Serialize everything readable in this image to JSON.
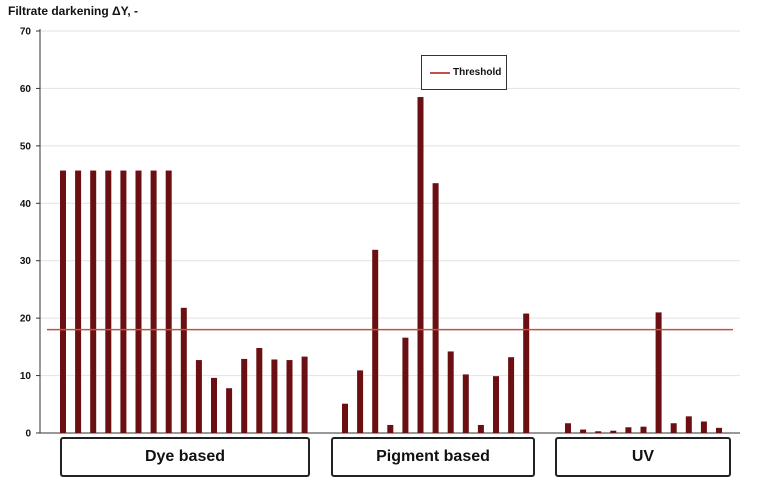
{
  "chart_data": {
    "type": "bar",
    "title": "",
    "ylabel": "Filtrate darkening ΔY, -",
    "ylim": [
      0,
      70
    ],
    "yticks": [
      "0",
      "10",
      "20",
      "30",
      "40",
      "50",
      "60",
      "70"
    ],
    "grid": true,
    "threshold": {
      "name": "Threshold",
      "value": 18,
      "color": "#c0504d"
    },
    "bar_color": "#6b0f12",
    "legend_position": "top-center",
    "groups": [
      {
        "name": "Dye based",
        "values": [
          45.7,
          45.7,
          45.7,
          45.7,
          45.7,
          45.7,
          45.7,
          45.7,
          21.8,
          12.7,
          9.6,
          7.8,
          12.9,
          14.8,
          12.8,
          12.7,
          13.3
        ]
      },
      {
        "name": "Pigment based",
        "values": [
          5.1,
          10.9,
          31.9,
          1.4,
          16.6,
          58.5,
          43.5,
          14.2,
          10.2,
          1.4,
          9.9,
          13.2,
          20.8
        ]
      },
      {
        "name": "UV",
        "values": [
          1.7,
          0.6,
          0.3,
          0.4,
          1.0,
          1.1,
          21.0,
          1.7,
          2.9,
          2.0,
          0.9
        ]
      }
    ]
  }
}
